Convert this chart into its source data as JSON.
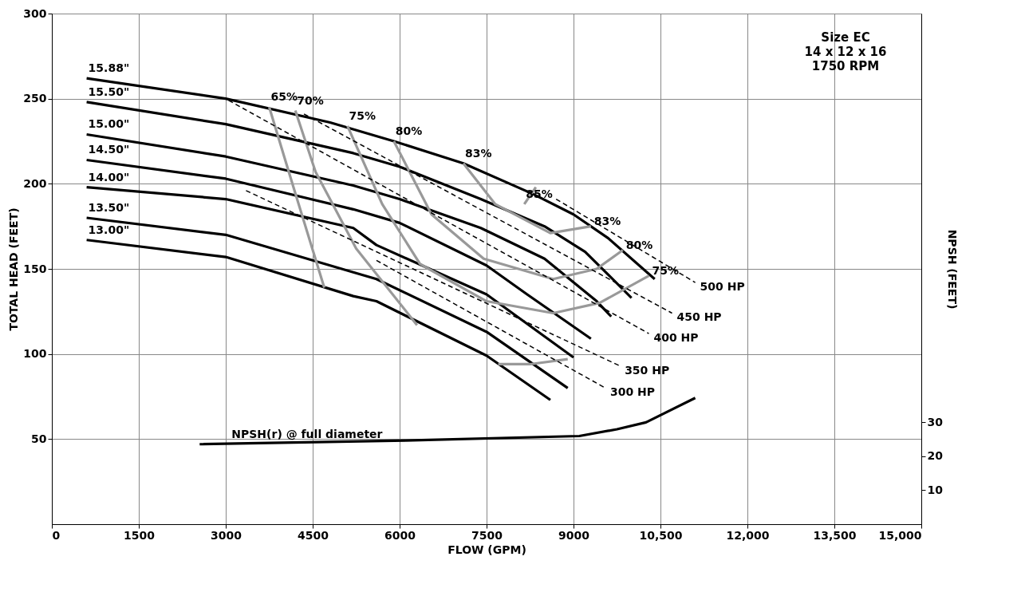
{
  "chart_data": {
    "type": "line",
    "xlabel": "FLOW (GPM)",
    "ylabel": "TOTAL HEAD (FEET)",
    "y2label": "NPSH (FEET)",
    "xlim": [
      0,
      15000
    ],
    "ylim": [
      0,
      300
    ],
    "y2lim": [
      0,
      150
    ],
    "xticks": [
      0,
      1500,
      3000,
      4500,
      6000,
      7500,
      9000,
      {
        "value": 10500,
        "label": "10,500"
      },
      {
        "value": 12000,
        "label": "12,000"
      },
      {
        "value": 13500,
        "label": "13,500"
      },
      {
        "value": 15000,
        "label": "15,000"
      }
    ],
    "yticks": [
      50,
      100,
      150,
      200,
      250,
      300
    ],
    "y2ticks": [
      10,
      20,
      30
    ],
    "grid": true,
    "marker": "none",
    "series": [
      {
        "name": "15.88\"",
        "color": "#000000",
        "line_style": "solid",
        "x": [
          600,
          3000,
          4800,
          5900,
          7100,
          8300,
          9000,
          9600,
          10400
        ],
        "values": [
          262,
          250,
          236,
          225,
          212,
          194,
          182,
          168,
          144
        ]
      },
      {
        "name": "15.50\"",
        "color": "#000000",
        "line_style": "solid",
        "x": [
          600,
          3000,
          5200,
          6000,
          7400,
          8500,
          9200,
          10000
        ],
        "values": [
          248,
          235,
          218,
          210,
          191,
          175,
          160,
          133
        ]
      },
      {
        "name": "15.00\"",
        "color": "#000000",
        "line_style": "solid",
        "x": [
          600,
          3000,
          5200,
          6000,
          7400,
          8500,
          9400,
          9650
        ],
        "values": [
          229,
          216,
          199,
          191,
          174,
          156,
          131,
          122
        ]
      },
      {
        "name": "14.50\"",
        "color": "#000000",
        "line_style": "solid",
        "x": [
          600,
          3000,
          5200,
          6000,
          7500,
          8200,
          9300
        ],
        "values": [
          214,
          203,
          185,
          177,
          152,
          135,
          109
        ]
      },
      {
        "name": "14.00\"",
        "color": "#000000",
        "line_style": "solid",
        "x": [
          600,
          3000,
          5200,
          5600,
          7500,
          9000
        ],
        "values": [
          198,
          191,
          174,
          164,
          135,
          98
        ]
      },
      {
        "name": "13.50\"",
        "color": "#000000",
        "line_style": "solid",
        "x": [
          600,
          3000,
          5200,
          5600,
          7500,
          8900
        ],
        "values": [
          180,
          170,
          148,
          144,
          113,
          80
        ]
      },
      {
        "name": "13.00\"",
        "color": "#000000",
        "line_style": "solid",
        "x": [
          600,
          3000,
          5200,
          5600,
          7500,
          8600
        ],
        "values": [
          167,
          157,
          134,
          131,
          99,
          73
        ]
      },
      {
        "name": "65%",
        "color": "#999999",
        "line_style": "solid",
        "x": [
          3750,
          4150,
          4700
        ],
        "values": [
          245,
          200,
          139
        ]
      },
      {
        "name": "70%",
        "color": "#999999",
        "line_style": "solid",
        "x": [
          4200,
          4550,
          5250,
          6300
        ],
        "values": [
          243,
          207,
          162,
          117
        ]
      },
      {
        "name": "75%",
        "color": "#999999",
        "line_style": "solid",
        "x": [
          5100,
          5700,
          6350,
          6500,
          7500,
          8650,
          9450,
          10300
        ],
        "values": [
          234,
          188,
          153,
          150,
          131,
          124,
          130,
          146
        ]
      },
      {
        "name": "80%",
        "color": "#999999",
        "line_style": "solid",
        "x": [
          5900,
          6550,
          7450,
          8650,
          9400,
          9850
        ],
        "values": [
          225,
          182,
          156,
          144,
          150,
          161
        ]
      },
      {
        "name": "83%",
        "color": "#999999",
        "line_style": "solid",
        "x": [
          7100,
          7650,
          8600,
          9300
        ],
        "values": [
          212,
          188,
          171,
          175
        ]
      },
      {
        "name": "85%",
        "color": "#999999",
        "line_style": "solid",
        "x": [
          8150,
          8350
        ],
        "values": [
          188,
          198
        ]
      },
      {
        "color": "#999999",
        "line_style": "solid",
        "x": [
          7700,
          8250,
          8900
        ],
        "values": [
          94,
          94,
          97
        ]
      },
      {
        "name": "500 HP",
        "color": "#000000",
        "line_style": "dashed",
        "x": [
          8700,
          11100
        ],
        "values": [
          191,
          142
        ]
      },
      {
        "name": "450 HP",
        "color": "#000000",
        "line_style": "dashed",
        "x": [
          4350,
          10700
        ],
        "values": [
          241,
          124
        ]
      },
      {
        "name": "400 HP",
        "color": "#000000",
        "line_style": "dashed",
        "x": [
          3050,
          10300
        ],
        "values": [
          249,
          112
        ]
      },
      {
        "name": "350 HP",
        "color": "#000000",
        "line_style": "dashed",
        "x": [
          3350,
          9800
        ],
        "values": [
          196,
          93
        ]
      },
      {
        "name": "300 HP",
        "color": "#000000",
        "line_style": "dashed",
        "x": [
          5600,
          9550
        ],
        "values": [
          155,
          80
        ]
      },
      {
        "name": "NPSH(r) @ full diameter",
        "color": "#000000",
        "line_style": "solid",
        "axis": "y2",
        "x": [
          2550,
          6100,
          9100,
          9750,
          10250,
          11100
        ],
        "values": [
          23.5,
          24.6,
          25.9,
          27.9,
          29.9,
          37.1
        ]
      }
    ],
    "annotations": [
      "Size EC",
      "14 x 12 x 16",
      "1750 RPM",
      {
        "text": "83%",
        "x": 9300,
        "y": 175
      },
      {
        "text": "80%",
        "x": 9850,
        "y": 161
      },
      {
        "text": "75%",
        "x": 10300,
        "y": 146
      }
    ]
  }
}
